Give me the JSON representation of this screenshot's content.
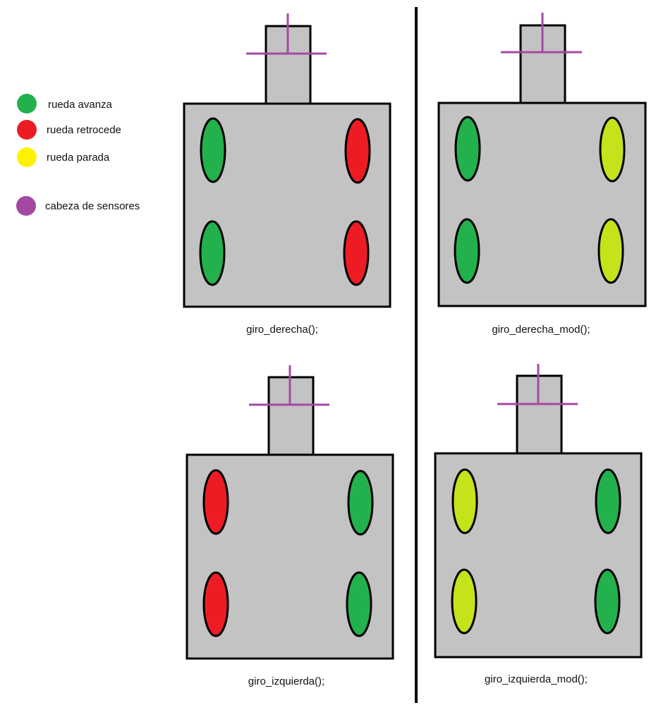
{
  "colors": {
    "forward": "#22b14c",
    "forward_dark": "#1fa24a",
    "reverse": "#ed1c24",
    "stopped": "#fff200",
    "stopped_wheel": "#c5e21a",
    "sensor": "#a349a4",
    "body": "#c3c3c3",
    "outline": "#000000"
  },
  "legend": [
    {
      "label": "rueda avanza",
      "color": "#22b14c",
      "icon": "green-dot-icon"
    },
    {
      "label": "rueda retrocede",
      "color": "#ed1c24",
      "icon": "red-dot-icon"
    },
    {
      "label": "rueda parada",
      "color": "#fff200",
      "icon": "yellow-dot-icon"
    },
    {
      "label": "cabeza de sensores",
      "color": "#a349a4",
      "icon": "purple-dot-icon"
    }
  ],
  "robots": [
    {
      "caption": "giro_derecha();",
      "wheels": {
        "front_left": "forward",
        "rear_left": "forward",
        "front_right": "reverse",
        "rear_right": "reverse"
      }
    },
    {
      "caption": "giro_derecha_mod();",
      "wheels": {
        "front_left": "forward",
        "rear_left": "forward",
        "front_right": "stopped",
        "rear_right": "stopped"
      }
    },
    {
      "caption": "giro_izquierda();",
      "wheels": {
        "front_left": "reverse",
        "rear_left": "reverse",
        "front_right": "forward",
        "rear_right": "forward"
      }
    },
    {
      "caption": "giro_izquierda_mod();",
      "wheels": {
        "front_left": "stopped",
        "rear_left": "stopped",
        "front_right": "forward",
        "rear_right": "forward"
      }
    }
  ]
}
